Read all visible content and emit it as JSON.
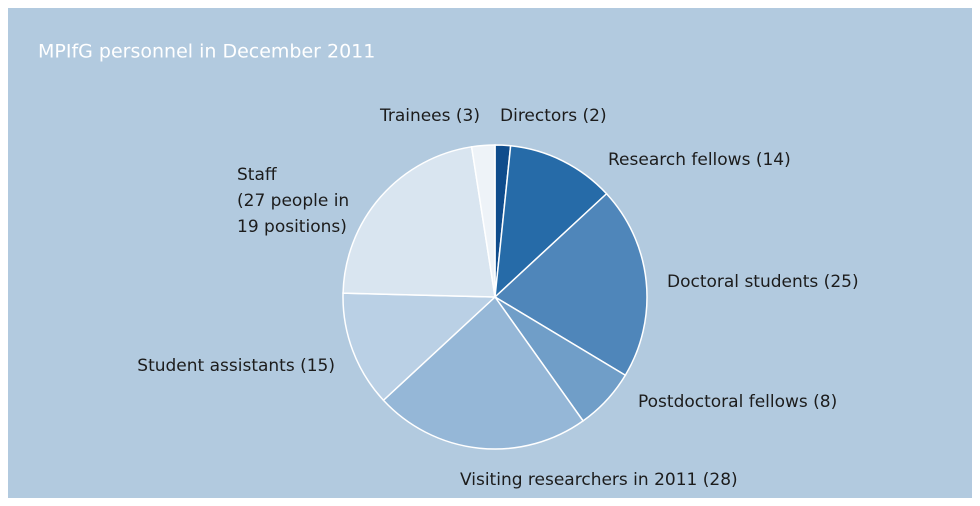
{
  "chart_data": {
    "type": "pie",
    "title": "MPIfG personnel in December 2011",
    "categories": [
      "Directors (2)",
      "Research fellows (14)",
      "Doctoral students (25)",
      "Postdoctoral fellows (8)",
      "Visiting researchers in 2011 (28)",
      "Student assistants (15)",
      "Staff\n(27 people in\n19 positions)",
      "Trainees (3)"
    ],
    "values": [
      2,
      14,
      25,
      8,
      28,
      15,
      27,
      3
    ],
    "colors": [
      "#0f4c8c",
      "#266ba8",
      "#4f86ba",
      "#709ec8",
      "#95b7d7",
      "#bad0e5",
      "#d9e5f0",
      "#eef3f8"
    ]
  }
}
